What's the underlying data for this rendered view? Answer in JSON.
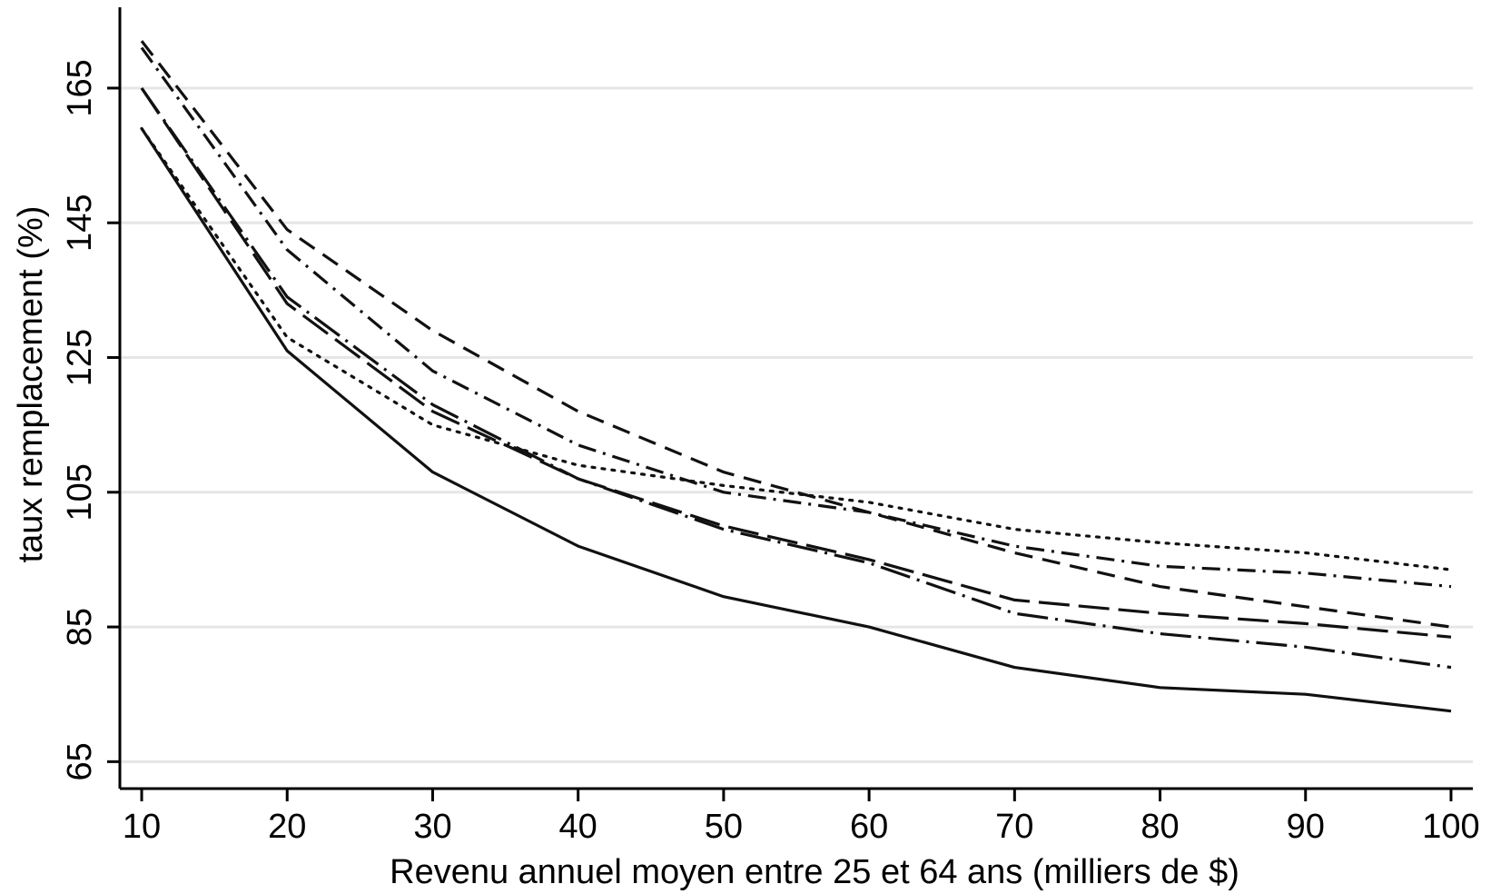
{
  "chart_data": {
    "type": "line",
    "title": "",
    "xlabel": "Revenu annuel moyen entre 25 et 64 ans (milliers de $)",
    "ylabel": "taux remplacement (%)",
    "x": [
      10,
      20,
      30,
      40,
      50,
      60,
      70,
      80,
      90,
      100
    ],
    "xticks": [
      10,
      20,
      30,
      40,
      50,
      60,
      70,
      80,
      90,
      100
    ],
    "yticks": [
      65,
      85,
      105,
      125,
      145,
      165
    ],
    "xlim": [
      8.5,
      101.5
    ],
    "ylim": [
      61,
      177
    ],
    "grid": true,
    "legend": "none",
    "series": [
      {
        "style": "solid",
        "values": [
          159,
          126,
          108,
          97,
          89.5,
          85,
          79,
          76,
          75,
          72.5
        ]
      },
      {
        "style": "dotted",
        "values": [
          159,
          128,
          115,
          109,
          106,
          103.5,
          99.5,
          97.5,
          96,
          93.5
        ]
      },
      {
        "style": "long-dash",
        "values": [
          165,
          133,
          117,
          107,
          100,
          95,
          89,
          87,
          85.5,
          83.5
        ]
      },
      {
        "style": "long-dash-dot",
        "values": [
          165,
          134,
          118,
          107,
          99.5,
          94.5,
          87,
          84,
          82,
          79
        ]
      },
      {
        "style": "dash",
        "values": [
          172,
          144,
          129,
          117,
          108,
          102,
          96,
          91,
          88,
          85
        ]
      },
      {
        "style": "dash-dot",
        "values": [
          171,
          141,
          123,
          112,
          105,
          102,
          97,
          94,
          93,
          91
        ]
      }
    ],
    "colors": {
      "line": "#111111",
      "grid": "#e6e6e6",
      "axis": "#000000",
      "background": "#ffffff"
    }
  }
}
